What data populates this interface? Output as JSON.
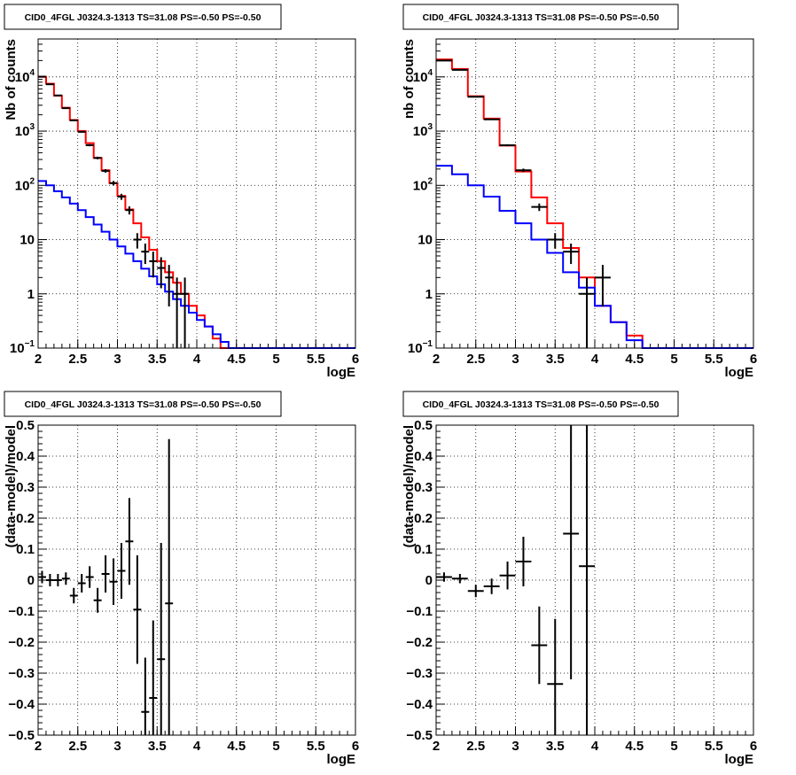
{
  "chart_data": [
    {
      "type": "histogram",
      "title": "CID0_4FGL J0324.3-1313 TS=31.08 PS=-0.50 PS=-0.50",
      "xlabel": "logE",
      "ylabel": "Nb of counts",
      "xlim": [
        2,
        6
      ],
      "ylim": [
        0.1,
        50000
      ],
      "yscale": "log",
      "grid": true,
      "x_ticks": [
        "2",
        "2.5",
        "3",
        "3.5",
        "4",
        "4.5",
        "5",
        "5.5",
        "6"
      ],
      "y_ticks": [
        {
          "value": 0.1,
          "base": "10",
          "exp": "−1"
        },
        {
          "value": 1,
          "label": "1"
        },
        {
          "value": 10,
          "label": "10"
        },
        {
          "value": 100,
          "base": "10",
          "exp": "2"
        },
        {
          "value": 1000,
          "base": "10",
          "exp": "3"
        },
        {
          "value": 10000,
          "base": "10",
          "exp": "4"
        }
      ],
      "bin_edges": [
        2.0,
        2.1,
        2.2,
        2.3,
        2.4,
        2.5,
        2.6,
        2.7,
        2.8,
        2.9,
        3.0,
        3.1,
        3.2,
        3.3,
        3.4,
        3.5,
        3.6,
        3.7,
        3.8,
        3.9,
        4.0,
        4.1,
        4.2,
        4.3,
        4.4,
        4.5,
        4.6,
        4.7,
        4.8,
        4.9,
        5.0,
        5.1,
        5.2,
        5.3,
        5.4,
        5.5,
        5.6,
        5.7,
        5.8,
        5.9,
        6.0
      ],
      "series": [
        {
          "color": "#ff0000",
          "values": [
            10000,
            7500,
            4500,
            2700,
            1600,
            1000,
            600,
            320,
            190,
            110,
            64,
            36,
            20,
            11,
            6.5,
            4.0,
            2.5,
            1.6,
            1.0,
            0.6,
            0.4,
            0.25,
            0.15,
            0.1,
            0.1,
            0.1,
            0.1,
            0.1,
            0.1,
            0.1,
            0.1,
            0.1,
            0.1,
            0.1,
            0.1,
            0.1,
            0.1,
            0.1,
            0.1,
            0.1
          ]
        },
        {
          "color": "#0000ff",
          "values": [
            120,
            100,
            78,
            60,
            46,
            35,
            26,
            19,
            14,
            10,
            7.5,
            5.5,
            4.0,
            2.9,
            2.1,
            1.5,
            1.1,
            0.8,
            0.6,
            0.45,
            0.33,
            0.25,
            0.18,
            0.13,
            0.1,
            0.1,
            0.1,
            0.1,
            0.1,
            0.1,
            0.1,
            0.1,
            0.1,
            0.1,
            0.1,
            0.1,
            0.1,
            0.1,
            0.1,
            0.1
          ]
        }
      ],
      "points": [
        {
          "x": 2.05,
          "y": 10100
        },
        {
          "x": 2.15,
          "y": 7300
        },
        {
          "x": 2.25,
          "y": 4550
        },
        {
          "x": 2.35,
          "y": 2650
        },
        {
          "x": 2.45,
          "y": 1580
        },
        {
          "x": 2.55,
          "y": 970
        },
        {
          "x": 2.65,
          "y": 550
        },
        {
          "x": 2.75,
          "y": 320
        },
        {
          "x": 2.85,
          "y": 185
        },
        {
          "x": 2.95,
          "y": 110
        },
        {
          "x": 3.05,
          "y": 62
        },
        {
          "x": 3.15,
          "y": 35
        },
        {
          "x": 3.25,
          "y": 10
        },
        {
          "x": 3.35,
          "y": 6
        },
        {
          "x": 3.45,
          "y": 4
        },
        {
          "x": 3.55,
          "y": 3
        },
        {
          "x": 3.65,
          "y": 2
        },
        {
          "x": 3.75,
          "y": 1
        },
        {
          "x": 3.85,
          "y": 1
        }
      ]
    },
    {
      "type": "histogram",
      "title": "CID0_4FGL J0324.3-1313 TS=31.08 PS=-0.50 PS=-0.50",
      "xlabel": "logE",
      "ylabel": "nb of counts",
      "xlim": [
        2,
        6
      ],
      "ylim": [
        0.1,
        50000
      ],
      "yscale": "log",
      "grid": true,
      "x_ticks": [
        "2",
        "2.5",
        "3",
        "3.5",
        "4",
        "4.5",
        "5",
        "5.5",
        "6"
      ],
      "y_ticks": [
        {
          "value": 0.1,
          "base": "10",
          "exp": "−1"
        },
        {
          "value": 1,
          "label": "1"
        },
        {
          "value": 10,
          "label": "10"
        },
        {
          "value": 100,
          "base": "10",
          "exp": "2"
        },
        {
          "value": 1000,
          "base": "10",
          "exp": "3"
        },
        {
          "value": 10000,
          "base": "10",
          "exp": "4"
        }
      ],
      "bin_edges": [
        2.0,
        2.2,
        2.4,
        2.6,
        2.8,
        3.0,
        3.2,
        3.4,
        3.6,
        3.8,
        4.0,
        4.2,
        4.4,
        4.6,
        4.8,
        5.0,
        5.2,
        5.4,
        5.6,
        5.8,
        6.0
      ],
      "series": [
        {
          "color": "#ff0000",
          "values": [
            21000,
            14000,
            4400,
            1700,
            540,
            180,
            60,
            20,
            7,
            2,
            0.6,
            0.3,
            0.17,
            0.1,
            0.1,
            0.1,
            0.1,
            0.1,
            0.1,
            0.1
          ]
        },
        {
          "color": "#0000ff",
          "values": [
            230,
            160,
            100,
            62,
            34,
            20,
            10,
            5.7,
            2.5,
            1.3,
            0.6,
            0.3,
            0.14,
            0.1,
            0.1,
            0.1,
            0.1,
            0.1,
            0.1,
            0.1
          ]
        }
      ],
      "points": [
        {
          "x": 2.1,
          "y": 20000
        },
        {
          "x": 2.3,
          "y": 13500
        },
        {
          "x": 2.5,
          "y": 4300
        },
        {
          "x": 2.7,
          "y": 1650
        },
        {
          "x": 2.9,
          "y": 550
        },
        {
          "x": 3.1,
          "y": 190
        },
        {
          "x": 3.3,
          "y": 40
        },
        {
          "x": 3.5,
          "y": 10
        },
        {
          "x": 3.7,
          "y": 6
        },
        {
          "x": 3.9,
          "y": 1
        },
        {
          "x": 4.1,
          "y": 2
        }
      ]
    },
    {
      "type": "scatter",
      "title": "CID0_4FGL J0324.3-1313 TS=31.08 PS=-0.50 PS=-0.50",
      "xlabel": "logE",
      "ylabel": "(data-model)/model",
      "xlim": [
        2,
        6
      ],
      "ylim": [
        -0.5,
        0.5
      ],
      "grid": true,
      "x_ticks": [
        "2",
        "2.5",
        "3",
        "3.5",
        "4",
        "4.5",
        "5",
        "5.5",
        "6"
      ],
      "y_ticks": [
        "−0.5",
        "−0.4",
        "−0.3",
        "−0.2",
        "−0.1",
        "0",
        "0.1",
        "0.2",
        "0.3",
        "0.4",
        "0.5"
      ],
      "points": [
        {
          "x": 2.05,
          "y": 0.01,
          "err": 0.02
        },
        {
          "x": 2.15,
          "y": 0.0,
          "err": 0.02
        },
        {
          "x": 2.25,
          "y": 0.0,
          "err": 0.02
        },
        {
          "x": 2.35,
          "y": 0.005,
          "err": 0.02
        },
        {
          "x": 2.45,
          "y": -0.05,
          "err": 0.025
        },
        {
          "x": 2.55,
          "y": -0.01,
          "err": 0.03
        },
        {
          "x": 2.65,
          "y": 0.01,
          "err": 0.035
        },
        {
          "x": 2.75,
          "y": -0.065,
          "err": 0.04
        },
        {
          "x": 2.85,
          "y": 0.02,
          "err": 0.06
        },
        {
          "x": 2.95,
          "y": -0.005,
          "err": 0.075
        },
        {
          "x": 3.05,
          "y": 0.03,
          "err": 0.09
        },
        {
          "x": 3.15,
          "y": 0.125,
          "err": 0.14
        },
        {
          "x": 3.25,
          "y": -0.095,
          "err": 0.175
        },
        {
          "x": 3.35,
          "y": -0.425,
          "err": 0.175
        },
        {
          "x": 3.45,
          "y": -0.38,
          "err": 0.25
        },
        {
          "x": 3.55,
          "y": -0.255,
          "err": 0.375
        },
        {
          "x": 3.65,
          "y": -0.075,
          "err": 0.53
        }
      ]
    },
    {
      "type": "scatter",
      "title": "CID0_4FGL J0324.3-1313 TS=31.08 PS=-0.50 PS=-0.50",
      "xlabel": "logE",
      "ylabel": "(data-model)/model",
      "xlim": [
        2,
        6
      ],
      "ylim": [
        -0.5,
        0.5
      ],
      "grid": true,
      "x_ticks": [
        "2",
        "2.5",
        "3",
        "3.5",
        "4",
        "4.5",
        "5",
        "5.5",
        "6"
      ],
      "y_ticks": [
        "−0.5",
        "−0.4",
        "−0.3",
        "−0.2",
        "−0.1",
        "0",
        "0.1",
        "0.2",
        "0.3",
        "0.4",
        "0.5"
      ],
      "points": [
        {
          "x": 2.1,
          "y": 0.01,
          "err": 0.015
        },
        {
          "x": 2.3,
          "y": 0.005,
          "err": 0.015
        },
        {
          "x": 2.5,
          "y": -0.035,
          "err": 0.02
        },
        {
          "x": 2.7,
          "y": -0.02,
          "err": 0.025
        },
        {
          "x": 2.9,
          "y": 0.015,
          "err": 0.045
        },
        {
          "x": 3.1,
          "y": 0.06,
          "err": 0.08
        },
        {
          "x": 3.3,
          "y": -0.21,
          "err": 0.125
        },
        {
          "x": 3.5,
          "y": -0.335,
          "err": 0.21
        },
        {
          "x": 3.7,
          "y": 0.15,
          "err": 0.47
        },
        {
          "x": 3.9,
          "y": 0.045,
          "err": 0.65
        }
      ]
    }
  ]
}
